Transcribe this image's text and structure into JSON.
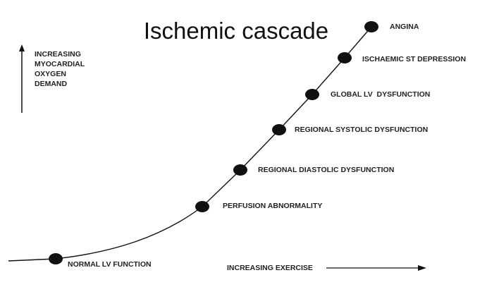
{
  "title": "Ischemic cascade",
  "y_axis_label": [
    "INCREASING",
    "MYOCARDIAL",
    "OXYGEN",
    "DEMAND"
  ],
  "x_axis_label": "INCREASING EXERCISE",
  "stages": [
    "NORMAL LV FUNCTION",
    "PERFUSION ABNORMALITY",
    "REGIONAL DIASTOLIC DYSFUNCTION",
    "REGIONAL SYSTOLIC DYSFUNCTION",
    "GLOBAL LV  DYSFUNCTION",
    "ISCHAEMIC ST DEPRESSION",
    "ANGINA"
  ],
  "colors": {
    "ink": "#111111",
    "text": "#222222"
  }
}
